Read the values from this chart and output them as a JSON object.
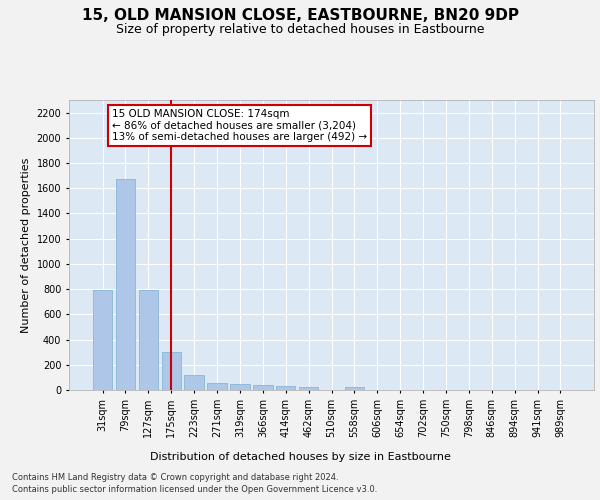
{
  "title": "15, OLD MANSION CLOSE, EASTBOURNE, BN20 9DP",
  "subtitle": "Size of property relative to detached houses in Eastbourne",
  "xlabel": "Distribution of detached houses by size in Eastbourne",
  "ylabel": "Number of detached properties",
  "footer_line1": "Contains HM Land Registry data © Crown copyright and database right 2024.",
  "footer_line2": "Contains public sector information licensed under the Open Government Licence v3.0.",
  "categories": [
    "31sqm",
    "79sqm",
    "127sqm",
    "175sqm",
    "223sqm",
    "271sqm",
    "319sqm",
    "366sqm",
    "414sqm",
    "462sqm",
    "510sqm",
    "558sqm",
    "606sqm",
    "654sqm",
    "702sqm",
    "750sqm",
    "798sqm",
    "846sqm",
    "894sqm",
    "941sqm",
    "989sqm"
  ],
  "values": [
    790,
    1670,
    790,
    305,
    120,
    55,
    45,
    40,
    30,
    20,
    0,
    20,
    0,
    0,
    0,
    0,
    0,
    0,
    0,
    0,
    0
  ],
  "bar_color": "#aec6e8",
  "bar_edge_color": "#7bafd4",
  "vline_x_index": 3,
  "vline_color": "#cc0000",
  "annotation_text": "15 OLD MANSION CLOSE: 174sqm\n← 86% of detached houses are smaller (3,204)\n13% of semi-detached houses are larger (492) →",
  "annotation_box_color": "#cc0000",
  "ylim_max": 2300,
  "ytick_max": 2200,
  "ytick_step": 200,
  "background_color": "#dce9f5",
  "grid_color": "#ffffff",
  "fig_bg_color": "#f2f2f2",
  "title_fontsize": 11,
  "subtitle_fontsize": 9,
  "xlabel_fontsize": 8,
  "ylabel_fontsize": 8,
  "tick_fontsize": 7,
  "annotation_fontsize": 7.5
}
